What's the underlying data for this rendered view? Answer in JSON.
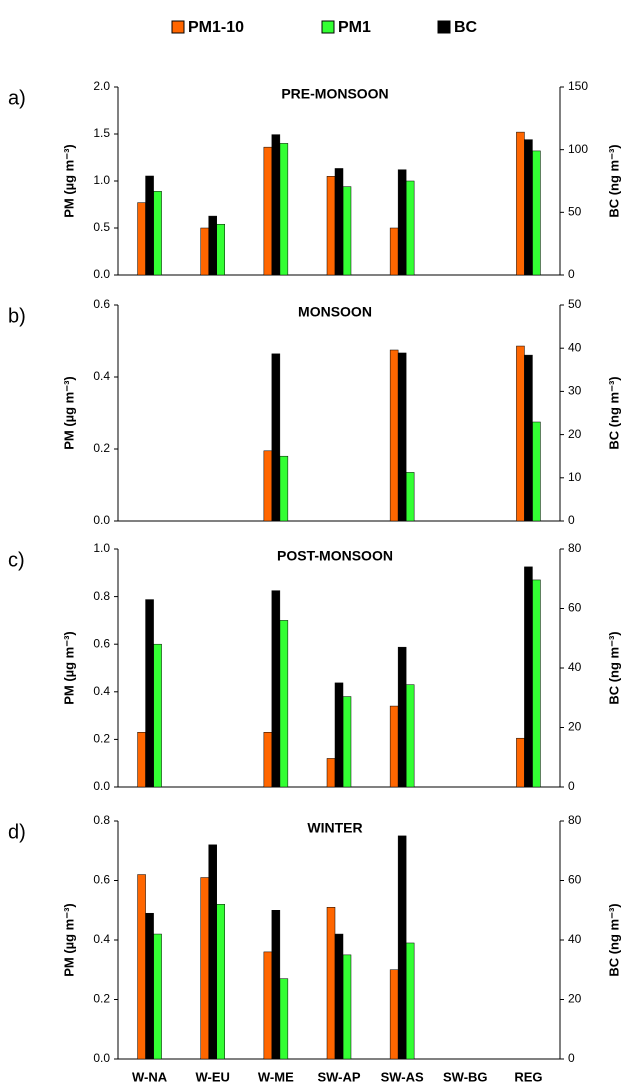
{
  "chart_data": [
    {
      "type": "bar",
      "label": "a)",
      "title": "PRE-MONSOON",
      "ylabel": "PM (µg m⁻³)",
      "y2label": "BC (ng m⁻³)",
      "ylim": [
        0,
        2
      ],
      "yticks": [
        {
          "value": 0,
          "label": "0.0"
        },
        {
          "value": 0.5,
          "label": "0.5"
        },
        {
          "value": 1,
          "label": "1.0"
        },
        {
          "value": 1.5,
          "label": "1.5"
        },
        {
          "value": 2,
          "label": "2.0"
        }
      ],
      "y2lim": [
        0,
        150
      ],
      "y2ticks": [
        0,
        50,
        100,
        150
      ],
      "series": [
        {
          "name": "PM1-10",
          "color": "#ff6600",
          "values": [
            0.77,
            0.5,
            1.36,
            1.05,
            0.5,
            null,
            1.52
          ]
        },
        {
          "name": "PM1",
          "color": "#33ff33",
          "values": [
            0.89,
            0.54,
            1.4,
            0.94,
            1.0,
            null,
            1.32
          ]
        },
        {
          "name": "BC",
          "color": "#000000",
          "axis": "y2",
          "values": [
            79,
            47,
            112,
            85,
            84,
            null,
            108
          ]
        }
      ]
    },
    {
      "type": "bar",
      "label": "b)",
      "title": "MONSOON",
      "ylabel": "PM (µg m⁻³)",
      "y2label": "BC (ng m⁻³)",
      "ylim": [
        0,
        0.6
      ],
      "yticks": [
        {
          "value": 0,
          "label": "0.0"
        },
        0.2,
        0.4,
        0.6
      ],
      "y2lim": [
        0,
        50
      ],
      "y2ticks": [
        0,
        10,
        20,
        30,
        40,
        50
      ],
      "series": [
        {
          "color": "#ff6600",
          "values": [
            null,
            null,
            0.195,
            null,
            0.475,
            null,
            0.486
          ]
        },
        {
          "color": "#33ff33",
          "values": [
            null,
            null,
            0.18,
            null,
            0.135,
            null,
            0.275
          ]
        },
        {
          "color": "#000000",
          "axis": "y2",
          "values": [
            null,
            null,
            38.7,
            null,
            38.9,
            null,
            38.4
          ]
        }
      ]
    },
    {
      "type": "bar",
      "label": "c)",
      "title": "POST-MONSOON",
      "ylabel": "PM (µg m⁻³)",
      "y2label": "BC (ng m⁻³)",
      "ylim": [
        0,
        1
      ],
      "yticks": [
        {
          "value": 0,
          "label": "0.0"
        },
        0.2,
        0.4,
        0.6,
        0.8,
        {
          "value": 1,
          "label": "1.0"
        }
      ],
      "y2lim": [
        0,
        80
      ],
      "y2ticks": [
        0,
        20,
        40,
        60,
        80
      ],
      "series": [
        {
          "color": "#ff6600",
          "values": [
            0.23,
            null,
            0.23,
            0.12,
            0.34,
            null,
            0.205
          ]
        },
        {
          "color": "#33ff33",
          "values": [
            0.6,
            null,
            0.7,
            0.38,
            0.43,
            null,
            0.87
          ]
        },
        {
          "color": "#000000",
          "axis": "y2",
          "values": [
            63,
            null,
            66,
            35,
            47,
            null,
            74
          ]
        }
      ]
    },
    {
      "type": "bar",
      "label": "d)",
      "title": "WINTER",
      "ylabel": "PM (µg m⁻³)",
      "y2label": "BC (ng m⁻³)",
      "categories": [
        "W-NA",
        "W-EU",
        "W-ME",
        "SW-AP",
        "SW-AS",
        "SW-BG",
        "REG"
      ],
      "ylim": [
        0,
        0.8
      ],
      "yticks": [
        {
          "value": 0,
          "label": "0.0"
        },
        0.2,
        0.4,
        0.6,
        0.8
      ],
      "y2lim": [
        0,
        80
      ],
      "y2ticks": [
        0,
        20,
        40,
        60,
        80
      ],
      "series": [
        {
          "color": "#ff6600",
          "values": [
            0.62,
            0.61,
            0.36,
            0.51,
            0.3,
            null,
            null
          ]
        },
        {
          "color": "#33ff33",
          "values": [
            0.42,
            0.52,
            0.27,
            0.35,
            0.39,
            null,
            null
          ]
        },
        {
          "color": "#000000",
          "axis": "y2",
          "values": [
            49,
            72,
            50,
            42,
            75,
            null,
            null
          ]
        }
      ]
    }
  ]
}
